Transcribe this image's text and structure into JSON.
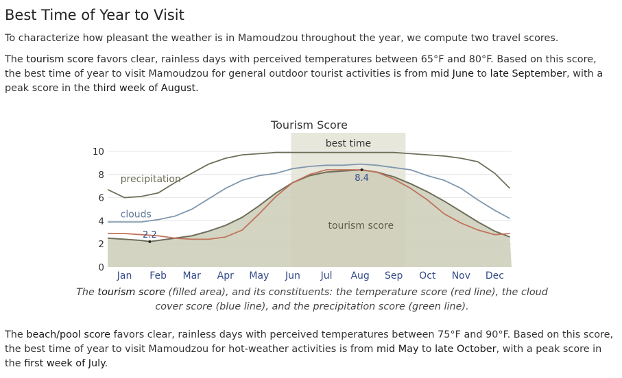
{
  "heading": "Best Time of Year to Visit",
  "intro": "To characterize how pleasant the weather is in Mamoudzou throughout the year, we compute two travel scores.",
  "tourism_paragraph": {
    "t1": "The ",
    "hl1": "tourism score",
    "t2": " favors clear, rainless days with perceived temperatures between 65°F and 80°F. Based on this score, the best time of year to visit Mamoudzou for general outdoor tourist activities is from ",
    "hl2": "mid June",
    "t3": " to ",
    "hl3": "late September",
    "t4": ", with a peak score in the ",
    "hl4": "third week of August",
    "t5": "."
  },
  "caption": {
    "t1": "The ",
    "hl1": "tourism score",
    "t2": " (filled area), and its constituents: the temperature score (red line), the cloud cover score (blue line), and the precipitation score (green line)."
  },
  "beach_paragraph": {
    "t1": "The ",
    "hl1": "beach/pool score",
    "t2": " favors clear, rainless days with perceived temperatures between 75°F and 90°F. Based on this score, the best time of year to visit Mamoudzou for hot-weather activities is from ",
    "hl2": "mid May",
    "t3": " to ",
    "hl3": "late October",
    "t4": ", with a peak score in the ",
    "hl4": "first week of July",
    "t5": "."
  },
  "chart_data": {
    "type": "area",
    "title": "Tourism Score",
    "categories": [
      "Jan",
      "Feb",
      "Mar",
      "Apr",
      "May",
      "Jun",
      "Jul",
      "Aug",
      "Sep",
      "Oct",
      "Nov",
      "Dec"
    ],
    "ylim": [
      0,
      10
    ],
    "yticks": [
      "0",
      "2",
      "4",
      "6",
      "8",
      "10"
    ],
    "grid": true,
    "best_time": {
      "label": "best time",
      "from_month": 5.45,
      "to_month": 8.85
    },
    "annotations": {
      "min_label": "2.2",
      "min_x": 1.25,
      "min_value": 2.2,
      "max_label": "8.4",
      "max_x": 7.55,
      "max_value": 8.4
    },
    "series": [
      {
        "name": "tourism score",
        "role": "filled area",
        "color": "#6e6e5a",
        "fill": "#ccccb8",
        "x": [
          0,
          0.5,
          1,
          1.25,
          1.5,
          2,
          2.5,
          3,
          3.5,
          4,
          4.5,
          5,
          5.5,
          6,
          6.5,
          7,
          7.55,
          8,
          8.5,
          9,
          9.5,
          10,
          10.5,
          11,
          11.5,
          11.95
        ],
        "values": [
          2.5,
          2.4,
          2.3,
          2.2,
          2.3,
          2.5,
          2.7,
          3.1,
          3.6,
          4.3,
          5.3,
          6.4,
          7.3,
          7.9,
          8.2,
          8.3,
          8.4,
          8.2,
          7.8,
          7.2,
          6.5,
          5.7,
          4.8,
          3.9,
          3.1,
          2.6
        ]
      },
      {
        "name": "precipitation",
        "role": "line",
        "color": "#6e6e5a",
        "x": [
          0,
          0.5,
          1,
          1.5,
          2,
          2.5,
          3,
          3.5,
          4,
          4.5,
          5,
          5.5,
          6,
          6.5,
          7,
          7.5,
          8,
          8.5,
          9,
          9.5,
          10,
          10.5,
          11,
          11.5,
          11.95
        ],
        "values": [
          6.7,
          6.0,
          6.1,
          6.4,
          7.3,
          8.1,
          8.9,
          9.4,
          9.7,
          9.8,
          9.9,
          9.9,
          9.9,
          9.9,
          9.9,
          9.9,
          9.9,
          9.9,
          9.8,
          9.7,
          9.6,
          9.4,
          9.1,
          8.1,
          6.8
        ]
      },
      {
        "name": "clouds",
        "role": "line",
        "color": "#7f97ad",
        "x": [
          0,
          0.5,
          1,
          1.5,
          2,
          2.5,
          3,
          3.5,
          4,
          4.5,
          5,
          5.5,
          6,
          6.5,
          7,
          7.5,
          8,
          8.5,
          9,
          9.5,
          10,
          10.5,
          11,
          11.5,
          11.95
        ],
        "values": [
          3.9,
          3.9,
          3.9,
          4.1,
          4.4,
          5.0,
          5.9,
          6.8,
          7.5,
          7.9,
          8.1,
          8.5,
          8.7,
          8.8,
          8.8,
          8.9,
          8.8,
          8.6,
          8.4,
          7.9,
          7.5,
          6.8,
          5.8,
          4.9,
          4.2
        ]
      },
      {
        "name": "temperature",
        "role": "line",
        "color": "#c0735a",
        "x": [
          0,
          0.5,
          1,
          1.5,
          2,
          2.5,
          3,
          3.5,
          4,
          4.5,
          5,
          5.5,
          6,
          6.5,
          7,
          7.5,
          8,
          8.5,
          9,
          9.5,
          10,
          10.5,
          11,
          11.5,
          11.95
        ],
        "values": [
          2.9,
          2.9,
          2.8,
          2.7,
          2.5,
          2.4,
          2.4,
          2.6,
          3.2,
          4.6,
          6.1,
          7.3,
          8.0,
          8.4,
          8.4,
          8.4,
          8.2,
          7.6,
          6.8,
          5.8,
          4.6,
          3.8,
          3.2,
          2.8,
          2.9
        ]
      }
    ],
    "series_labels": {
      "precipitation": {
        "text": "precipitation",
        "x": 0.38,
        "y": 7.35
      },
      "clouds": {
        "text": "clouds",
        "x": 0.38,
        "y": 4.3
      },
      "tourism": {
        "text": "tourism score",
        "x": 6.55,
        "y": 3.3
      }
    }
  }
}
